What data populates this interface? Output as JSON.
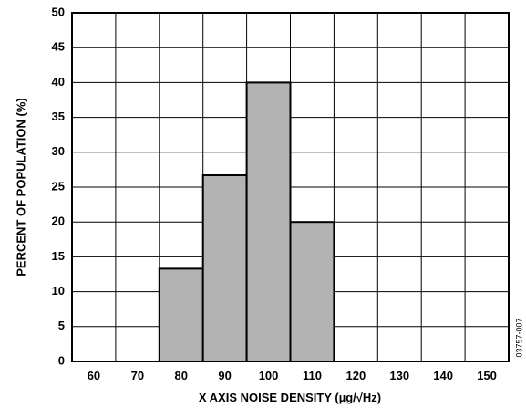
{
  "chart_data": {
    "type": "bar",
    "title": "",
    "xlabel": "X AXIS NOISE DENSITY (µg/√Hz)",
    "ylabel": "PERCENT OF POPULATION (%)",
    "x_ticks": [
      60,
      70,
      80,
      90,
      100,
      110,
      120,
      130,
      140,
      150
    ],
    "xlim": [
      55,
      155
    ],
    "bin_width": 10,
    "categories": [
      "80",
      "90",
      "100",
      "110"
    ],
    "values": [
      13.3,
      26.7,
      40,
      20
    ],
    "ylim": [
      0,
      50
    ],
    "y_ticks": [
      0,
      5,
      10,
      15,
      20,
      25,
      30,
      35,
      40,
      45,
      50
    ],
    "grid": true,
    "bar_color": "#b3b3b3",
    "figure_id": "03757-007"
  }
}
